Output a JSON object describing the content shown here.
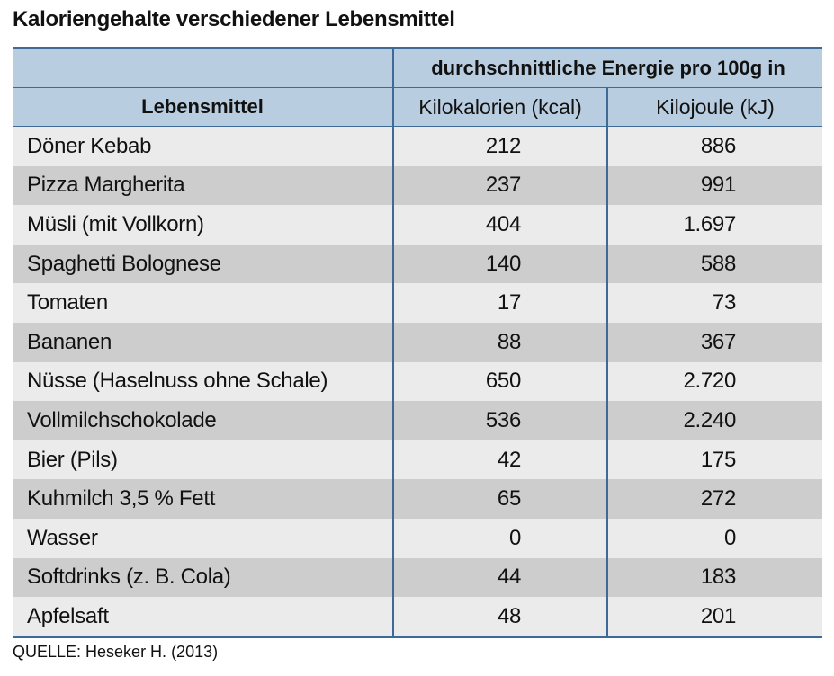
{
  "chart_data": {
    "type": "table",
    "title": "Kaloriengehalte verschiedener Lebensmittel",
    "header_group": "durchschnittliche Energie pro 100g in",
    "columns": [
      "Lebensmittel",
      "Kilokalorien  (kcal)",
      "Kilojoule  (kJ)"
    ],
    "rows": [
      {
        "food": "Döner Kebab",
        "kcal": "212",
        "kj": "886"
      },
      {
        "food": "Pizza Margherita",
        "kcal": "237",
        "kj": "991"
      },
      {
        "food": "Müsli (mit Vollkorn)",
        "kcal": "404",
        "kj": "1.697"
      },
      {
        "food": "Spaghetti Bolognese",
        "kcal": "140",
        "kj": "588"
      },
      {
        "food": "Tomaten",
        "kcal": "17",
        "kj": "73"
      },
      {
        "food": "Bananen",
        "kcal": "88",
        "kj": "367"
      },
      {
        "food": "Nüsse (Haselnuss ohne Schale)",
        "kcal": "650",
        "kj": "2.720"
      },
      {
        "food": "Vollmilchschokolade",
        "kcal": "536",
        "kj": "2.240"
      },
      {
        "food": "Bier (Pils)",
        "kcal": "42",
        "kj": "175"
      },
      {
        "food": "Kuhmilch 3,5 % Fett",
        "kcal": "65",
        "kj": "272"
      },
      {
        "food": "Wasser",
        "kcal": "0",
        "kj": "0"
      },
      {
        "food": "Softdrinks (z. B. Cola)",
        "kcal": "44",
        "kj": "183"
      },
      {
        "food": "Apfelsaft",
        "kcal": "48",
        "kj": "201"
      }
    ],
    "source": "QUELLE:  Heseker H. (2013)",
    "colors": {
      "header": "#b9cde0",
      "rule": "#3d6a96",
      "row_light": "#ebebeb",
      "row_dark": "#cdcdcd"
    }
  }
}
